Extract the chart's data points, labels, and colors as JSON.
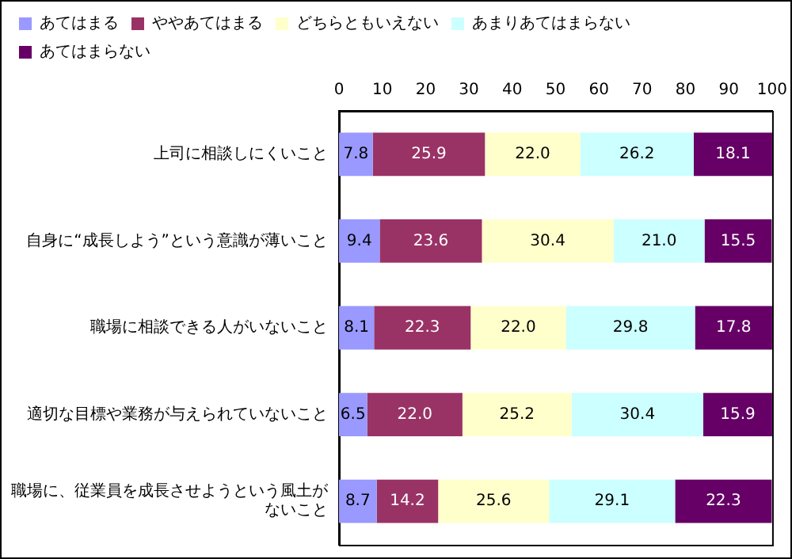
{
  "chart_data": {
    "type": "bar",
    "orientation": "horizontal",
    "stacked": true,
    "categories": [
      "上司に相談しにくいこと",
      "自身に“成長しよう”という意識が薄いこと",
      "職場に相談できる人がいないこと",
      "適切な目標や業務が与えられていないこと",
      "職場に、従業員を成長させようという風土がないこと"
    ],
    "series": [
      {
        "name": "あてはまる",
        "color": "#9999ff",
        "values": [
          7.8,
          9.4,
          8.1,
          6.5,
          8.7
        ],
        "value_labels": [
          "7.8",
          "9.4",
          "8.1",
          "6.5",
          "8.7"
        ]
      },
      {
        "name": "ややあてはまる",
        "color": "#993366",
        "values": [
          25.9,
          23.6,
          22.3,
          22.0,
          14.2
        ],
        "value_labels": [
          "25.9",
          "23.6",
          "22.3",
          "22.0",
          "14.2"
        ]
      },
      {
        "name": "どちらともいえない",
        "color": "#ffffcc",
        "values": [
          22.0,
          30.4,
          22.0,
          25.2,
          25.6
        ],
        "value_labels": [
          "22.0",
          "30.4",
          "22.0",
          "25.2",
          "25.6"
        ]
      },
      {
        "name": "あまりあてはまらない",
        "color": "#ccffff",
        "values": [
          26.2,
          21.0,
          29.8,
          30.4,
          29.1
        ],
        "value_labels": [
          "26.2",
          "21.0",
          "29.8",
          "30.4",
          "29.1"
        ]
      },
      {
        "name": "あてはまらない",
        "color": "#660066",
        "values": [
          18.1,
          15.5,
          17.8,
          15.9,
          22.3
        ],
        "value_labels": [
          "18.1",
          "15.5",
          "17.8",
          "15.9",
          "22.3"
        ]
      }
    ],
    "xlim": [
      0,
      100
    ],
    "xticks": [
      0,
      10,
      20,
      30,
      40,
      50,
      60,
      70,
      80,
      90,
      100
    ],
    "grid": false,
    "legend": "top"
  }
}
